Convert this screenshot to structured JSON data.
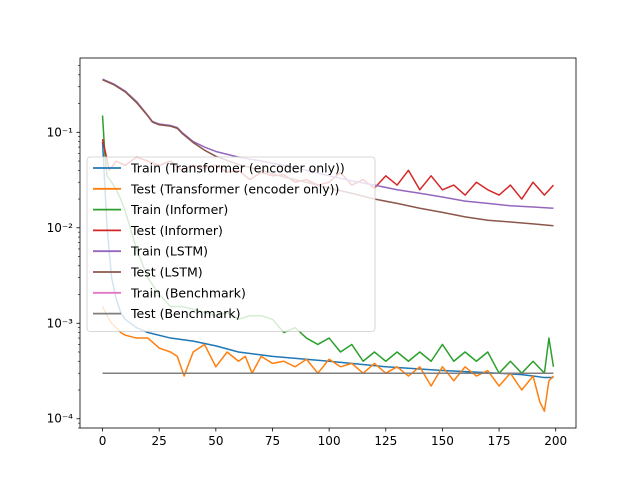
{
  "chart_data": {
    "type": "line",
    "title": "",
    "xlabel": "",
    "ylabel": "",
    "xlim": [
      -9.95,
      208.95
    ],
    "ylim": [
      8e-05,
      0.6
    ],
    "yscale": "log",
    "grid": false,
    "legend_placement": "center-left",
    "x_ticks": [
      0,
      25,
      50,
      75,
      100,
      125,
      150,
      175,
      200
    ],
    "x_tick_labels": [
      "0",
      "25",
      "50",
      "75",
      "100",
      "125",
      "150",
      "175",
      "200"
    ],
    "y_ticks": [
      0.0001,
      0.001,
      0.01,
      0.1
    ],
    "y_tick_labels": [
      "10⁻⁴",
      "10⁻³",
      "10⁻²",
      "10⁻¹"
    ],
    "series": [
      {
        "name": "Train (Transformer (encoder only))",
        "color": "#1f77b4",
        "x": [
          0,
          2,
          4,
          6,
          8,
          10,
          15,
          20,
          30,
          40,
          50,
          60,
          75,
          100,
          125,
          150,
          175,
          185,
          190,
          195,
          199
        ],
        "y": [
          0.08,
          0.01,
          0.003,
          0.0018,
          0.0013,
          0.0011,
          0.0009,
          0.0008,
          0.0007,
          0.00065,
          0.00058,
          0.0005,
          0.00045,
          0.0004,
          0.00035,
          0.00032,
          0.0003,
          0.00029,
          0.00028,
          0.00027,
          0.00027
        ]
      },
      {
        "name": "Test (Transformer (encoder only))",
        "color": "#ff7f0e",
        "x": [
          0,
          2,
          4,
          6,
          8,
          10,
          15,
          20,
          25,
          30,
          33,
          36,
          40,
          45,
          50,
          55,
          60,
          63,
          66,
          70,
          75,
          80,
          85,
          90,
          95,
          100,
          105,
          110,
          115,
          120,
          125,
          130,
          135,
          140,
          145,
          150,
          155,
          160,
          165,
          170,
          175,
          180,
          185,
          190,
          193,
          195,
          197,
          199
        ],
        "y": [
          0.0015,
          0.0012,
          0.001,
          0.0009,
          0.0008,
          0.00075,
          0.0007,
          0.0007,
          0.00055,
          0.0005,
          0.00045,
          0.00028,
          0.0005,
          0.0006,
          0.00035,
          0.0005,
          0.0004,
          0.00045,
          0.0003,
          0.00045,
          0.00038,
          0.0004,
          0.00035,
          0.00042,
          0.0003,
          0.00042,
          0.00035,
          0.00038,
          0.0003,
          0.00038,
          0.0003,
          0.00035,
          0.00028,
          0.00035,
          0.00022,
          0.00035,
          0.00025,
          0.00035,
          0.00028,
          0.00032,
          0.00022,
          0.0003,
          0.0002,
          0.00028,
          0.00015,
          0.00012,
          0.00025,
          0.00028
        ]
      },
      {
        "name": "Train (Informer)",
        "color": "#2ca02c",
        "x": [
          0,
          1,
          2,
          4,
          6,
          8,
          10,
          15,
          20,
          25,
          30,
          35,
          40,
          45,
          50,
          55,
          60,
          65,
          70,
          75,
          80,
          85,
          90,
          95,
          100,
          105,
          110,
          115,
          120,
          125,
          130,
          135,
          140,
          145,
          150,
          155,
          160,
          165,
          170,
          175,
          180,
          185,
          190,
          195,
          197,
          199
        ],
        "y": [
          0.15,
          0.06,
          0.035,
          0.03,
          0.025,
          0.02,
          0.015,
          0.006,
          0.003,
          0.002,
          0.0015,
          0.0015,
          0.0014,
          0.0013,
          0.0012,
          0.0013,
          0.0011,
          0.0012,
          0.0012,
          0.0011,
          0.0008,
          0.0009,
          0.0007,
          0.0006,
          0.0007,
          0.0005,
          0.0006,
          0.0004,
          0.0005,
          0.0004,
          0.0005,
          0.0004,
          0.0005,
          0.0004,
          0.0006,
          0.0004,
          0.0005,
          0.0004,
          0.0005,
          0.0003,
          0.0004,
          0.0003,
          0.0004,
          0.0003,
          0.0007,
          0.00035
        ]
      },
      {
        "name": "Test (Informer)",
        "color": "#d62728",
        "x": [
          0,
          3,
          6,
          10,
          15,
          20,
          25,
          30,
          35,
          40,
          45,
          50,
          55,
          60,
          65,
          70,
          75,
          80,
          85,
          90,
          95,
          100,
          105,
          110,
          115,
          120,
          125,
          130,
          135,
          140,
          145,
          150,
          155,
          160,
          165,
          170,
          175,
          180,
          185,
          190,
          195,
          199
        ],
        "y": [
          0.085,
          0.04,
          0.05,
          0.045,
          0.055,
          0.05,
          0.045,
          0.05,
          0.04,
          0.045,
          0.042,
          0.045,
          0.038,
          0.04,
          0.032,
          0.038,
          0.035,
          0.036,
          0.03,
          0.032,
          0.028,
          0.03,
          0.038,
          0.028,
          0.032,
          0.026,
          0.035,
          0.028,
          0.04,
          0.025,
          0.035,
          0.025,
          0.028,
          0.022,
          0.03,
          0.025,
          0.022,
          0.028,
          0.02,
          0.03,
          0.022,
          0.028
        ]
      },
      {
        "name": "Train (LSTM)",
        "color": "#9467bd",
        "x": [
          0,
          5,
          10,
          15,
          20,
          22,
          25,
          30,
          33,
          35,
          40,
          45,
          50,
          60,
          70,
          80,
          90,
          100,
          110,
          120,
          130,
          140,
          150,
          160,
          170,
          180,
          190,
          199
        ],
        "y": [
          0.36,
          0.32,
          0.27,
          0.21,
          0.15,
          0.13,
          0.122,
          0.118,
          0.112,
          0.1,
          0.08,
          0.07,
          0.063,
          0.055,
          0.05,
          0.045,
          0.04,
          0.035,
          0.031,
          0.028,
          0.025,
          0.023,
          0.021,
          0.019,
          0.018,
          0.017,
          0.0165,
          0.016
        ]
      },
      {
        "name": "Test (LSTM)",
        "color": "#8c564b",
        "x": [
          0,
          5,
          10,
          15,
          20,
          22,
          25,
          30,
          33,
          35,
          40,
          45,
          50,
          60,
          70,
          80,
          90,
          100,
          110,
          120,
          130,
          140,
          150,
          160,
          170,
          180,
          190,
          199
        ],
        "y": [
          0.355,
          0.315,
          0.265,
          0.205,
          0.148,
          0.128,
          0.12,
          0.116,
          0.11,
          0.098,
          0.078,
          0.065,
          0.056,
          0.046,
          0.04,
          0.034,
          0.03,
          0.026,
          0.023,
          0.02,
          0.018,
          0.016,
          0.0145,
          0.013,
          0.012,
          0.0115,
          0.011,
          0.0105
        ]
      },
      {
        "name": "Train (Benchmark)",
        "color": "#e377c2",
        "x": [],
        "y": []
      },
      {
        "name": "Test (Benchmark)",
        "color": "#7f7f7f",
        "x": [
          0,
          199
        ],
        "y": [
          0.0003,
          0.0003
        ]
      }
    ]
  }
}
